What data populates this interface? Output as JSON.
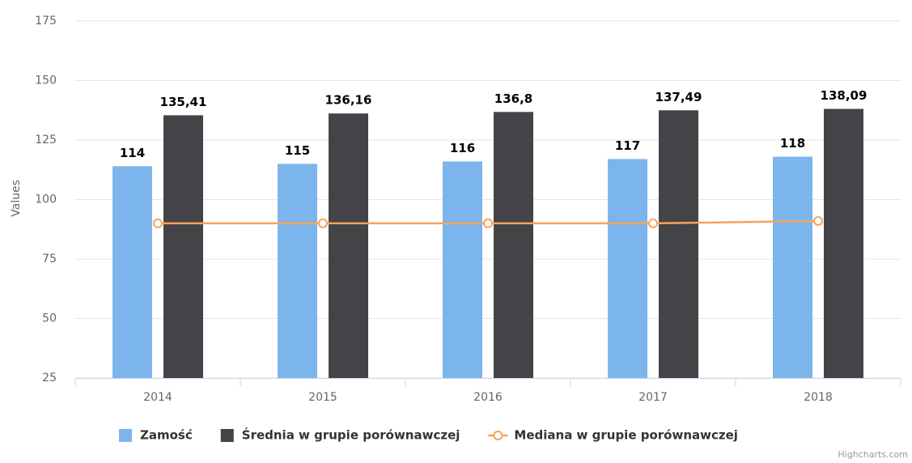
{
  "chart_data": {
    "type": "bar",
    "y_label": "Values",
    "categories": [
      "2014",
      "2015",
      "2016",
      "2017",
      "2018"
    ],
    "series": [
      {
        "name": "Zamość",
        "type": "bar",
        "color": "#7cb5ec",
        "values": [
          114,
          115,
          116,
          117,
          118
        ]
      },
      {
        "name": "Średnia w grupie porównawczej",
        "type": "bar",
        "color": "#434348",
        "values": [
          135.41,
          136.16,
          136.8,
          137.49,
          138.09
        ],
        "value_labels": [
          "135,41",
          "136,16",
          "136,8",
          "137,49",
          "138,09"
        ]
      },
      {
        "name": "Mediana w grupie porównawczej",
        "type": "line",
        "color": "#f7a35c",
        "values": [
          90,
          90,
          90,
          90,
          91
        ]
      }
    ],
    "ylim": [
      25,
      175
    ],
    "yticks": [
      25,
      50,
      75,
      100,
      125,
      150,
      175
    ],
    "grid": true,
    "legend": "bottom",
    "credits": "Highcharts.com"
  }
}
